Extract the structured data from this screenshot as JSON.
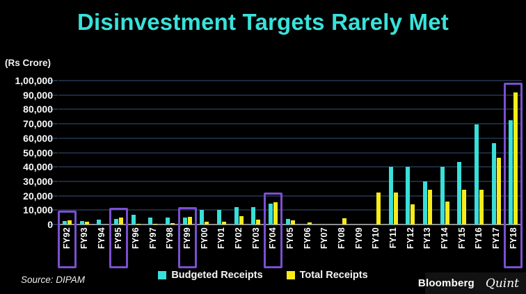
{
  "title": "Disinvestment Targets Rarely Met",
  "unit_label": "(Rs Crore)",
  "source": "Source: DIPAM",
  "branding": {
    "bloomberg": "Bloomberg",
    "quint": "Quint"
  },
  "legend": [
    {
      "label": "Budgeted Receipts",
      "color": "#39DFD8"
    },
    {
      "label": "Total Receipts",
      "color": "#F7EC1A"
    }
  ],
  "colors": {
    "background": "#000000",
    "title": "#38E2DA",
    "budgeted_bar": "#39DFD8",
    "total_bar": "#F7EC1A",
    "gridline": "#1C2A3E",
    "zero_axis": "#8E9091",
    "highlight_box": "#7A50D0",
    "text": "#FFFFFF"
  },
  "chart_data": {
    "type": "bar",
    "title": "Disinvestment Targets Rarely Met",
    "ylabel": "(Rs Crore)",
    "xlabel": "",
    "ylim": [
      0,
      100000
    ],
    "ytick_step": 10000,
    "ytick_labels": [
      "0",
      "10,000",
      "20,000",
      "30,000",
      "40,000",
      "50,000",
      "60,000",
      "70,000",
      "80,000",
      "90,000",
      "1,00,000"
    ],
    "grid": true,
    "legend_position": "bottom",
    "categories": [
      "FY92",
      "FY93",
      "FY94",
      "FY95",
      "FY96",
      "FY97",
      "FY98",
      "FY99",
      "FY00",
      "FY01",
      "FY02",
      "FY03",
      "FY04",
      "FY05",
      "FY06",
      "FY07",
      "FY08",
      "FY09",
      "FY10",
      "FY11",
      "FY12",
      "FY13",
      "FY14",
      "FY15",
      "FY16",
      "FY17",
      "FY18"
    ],
    "highlighted_categories": [
      "FY92",
      "FY95",
      "FY99",
      "FY04",
      "FY18"
    ],
    "series": [
      {
        "name": "Budgeted Receipts",
        "color": "#39DFD8",
        "values": [
          2500,
          2500,
          3500,
          4000,
          7000,
          5000,
          4800,
          5000,
          10000,
          10000,
          12000,
          12000,
          14500,
          4000,
          0,
          0,
          0,
          0,
          0,
          40000,
          40000,
          30000,
          40000,
          43400,
          69500,
          56500,
          72500
        ]
      },
      {
        "name": "Total Receipts",
        "color": "#F7EC1A",
        "values": [
          3000,
          1900,
          0,
          4800,
          400,
          400,
          900,
          5400,
          1900,
          1900,
          5700,
          3300,
          15500,
          2800,
          1600,
          0,
          4200,
          0,
          22000,
          22100,
          14000,
          24000,
          16000,
          24300,
          24000,
          46200,
          92000
        ]
      }
    ]
  }
}
